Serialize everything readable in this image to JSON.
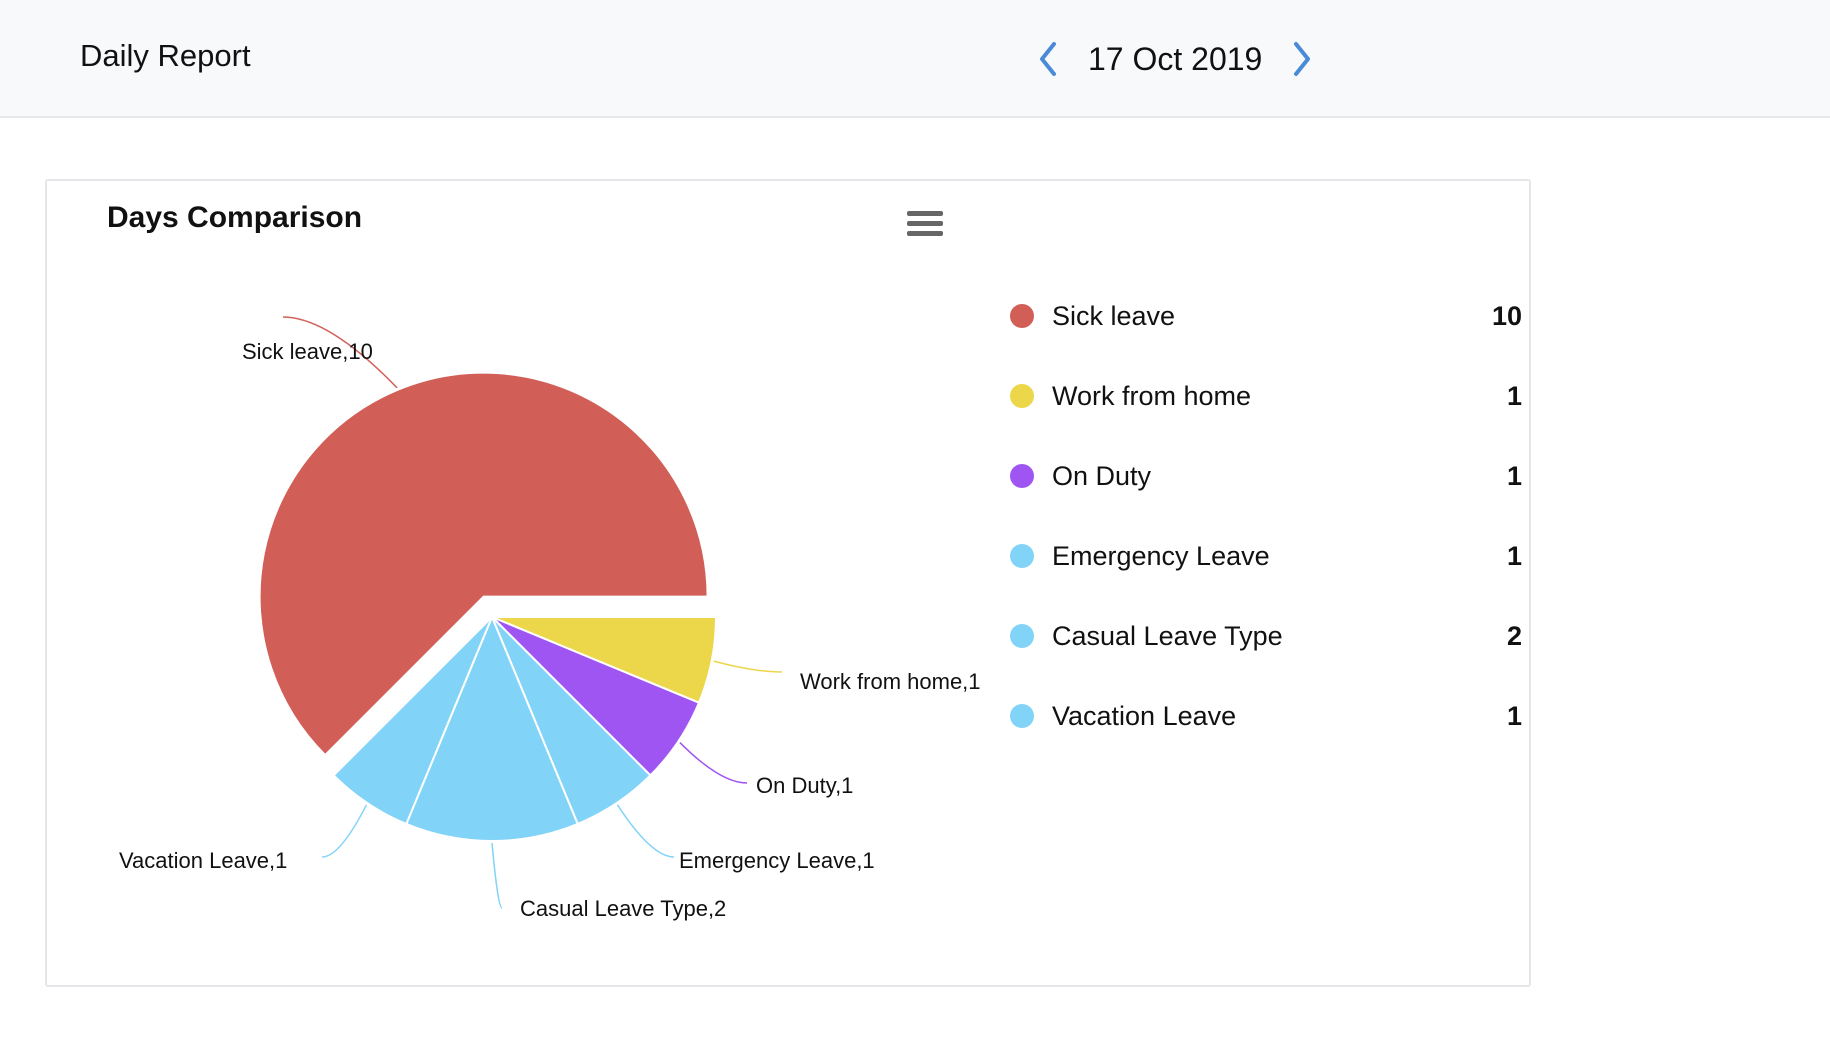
{
  "header": {
    "title": "Daily Report",
    "date": "17 Oct 2019"
  },
  "card": {
    "title": "Days Comparison"
  },
  "colors": {
    "accent": "#4a8ad6"
  },
  "chart_data": {
    "type": "pie",
    "title": "Days Comparison",
    "legend_position": "right",
    "categories": [
      "Sick leave",
      "Work from home",
      "On Duty",
      "Emergency Leave",
      "Casual Leave Type",
      "Vacation Leave"
    ],
    "values": [
      10,
      1,
      1,
      1,
      2,
      1
    ],
    "colors": [
      "#d15f58",
      "#ecd64a",
      "#9f55f2",
      "#82d3f8",
      "#82d3f8",
      "#82d3f8"
    ],
    "data_labels": [
      "Sick leave,10",
      "Work from home,1",
      "On Duty,1",
      "Emergency Leave,1",
      "Casual Leave Type,2",
      "Vacation Leave,1"
    ],
    "exploded": [
      "Sick leave"
    ]
  }
}
